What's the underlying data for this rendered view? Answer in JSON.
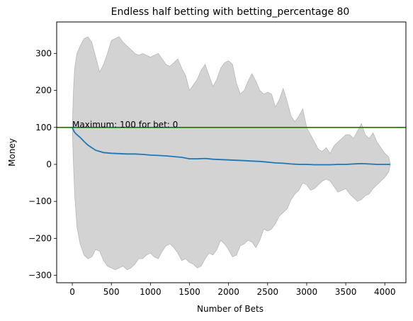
{
  "chart_data": {
    "type": "line",
    "title": "Endless half betting with betting_percentage 80",
    "xlabel": "Number of Bets",
    "ylabel": "Money",
    "xlim": [
      -200,
      4270
    ],
    "ylim": [
      -320,
      385
    ],
    "xticks": [
      0,
      500,
      1000,
      1500,
      2000,
      2500,
      3000,
      3500,
      4000
    ],
    "yticks": [
      -300,
      -200,
      -100,
      0,
      100,
      200,
      300
    ],
    "grid": false,
    "legend": "none",
    "reference_line": {
      "y": 100,
      "color": "#008000"
    },
    "annotation": {
      "text": "Maximum: 100 for bet: 0",
      "x": 0,
      "y": 100
    },
    "colors": {
      "mean": "#1f77b4",
      "band_fill": "#d3d3d3",
      "band_edge": "#b8b8b8",
      "reference": "#008000"
    },
    "series": [
      {
        "role": "mean",
        "x": [
          0,
          25,
          50,
          100,
          150,
          200,
          250,
          300,
          400,
          500,
          600,
          700,
          800,
          900,
          1000,
          1100,
          1200,
          1300,
          1400,
          1500,
          1600,
          1700,
          1800,
          1900,
          2000,
          2100,
          2200,
          2300,
          2400,
          2500,
          2600,
          2700,
          2800,
          2900,
          3000,
          3100,
          3200,
          3300,
          3400,
          3500,
          3600,
          3700,
          3800,
          3900,
          4000,
          4070
        ],
        "y": [
          100,
          88,
          82,
          73,
          62,
          52,
          45,
          38,
          32,
          30,
          29,
          28,
          28,
          27,
          25,
          24,
          23,
          21,
          19,
          15,
          15,
          16,
          14,
          13,
          12,
          11,
          10,
          9,
          8,
          6,
          4,
          3,
          1,
          0,
          0,
          -1,
          -1,
          -1,
          0,
          0,
          1,
          2,
          1,
          0,
          0,
          0
        ]
      },
      {
        "role": "band_upper",
        "x": [
          0,
          15,
          30,
          60,
          100,
          150,
          200,
          250,
          300,
          350,
          400,
          450,
          500,
          550,
          600,
          650,
          700,
          750,
          800,
          850,
          900,
          950,
          1000,
          1050,
          1100,
          1150,
          1200,
          1250,
          1300,
          1350,
          1400,
          1450,
          1500,
          1550,
          1600,
          1650,
          1700,
          1750,
          1800,
          1850,
          1900,
          1950,
          2000,
          2050,
          2100,
          2150,
          2200,
          2250,
          2300,
          2350,
          2400,
          2450,
          2500,
          2550,
          2600,
          2650,
          2700,
          2750,
          2800,
          2850,
          2900,
          2950,
          3000,
          3050,
          3100,
          3150,
          3200,
          3250,
          3300,
          3350,
          3400,
          3450,
          3500,
          3550,
          3600,
          3650,
          3700,
          3750,
          3800,
          3850,
          3900,
          3950,
          4000,
          4050,
          4070
        ],
        "y": [
          100,
          200,
          260,
          300,
          320,
          340,
          345,
          330,
          290,
          250,
          270,
          300,
          335,
          340,
          345,
          330,
          320,
          310,
          300,
          295,
          300,
          295,
          290,
          295,
          300,
          285,
          270,
          265,
          275,
          285,
          260,
          240,
          200,
          215,
          230,
          255,
          270,
          240,
          210,
          230,
          260,
          275,
          280,
          270,
          220,
          190,
          200,
          225,
          245,
          225,
          200,
          190,
          195,
          190,
          155,
          175,
          205,
          170,
          130,
          115,
          130,
          150,
          100,
          80,
          60,
          40,
          35,
          45,
          30,
          50,
          60,
          70,
          80,
          80,
          70,
          90,
          110,
          80,
          70,
          85,
          60,
          45,
          30,
          20,
          0
        ]
      },
      {
        "role": "band_lower",
        "x": [
          0,
          15,
          30,
          60,
          100,
          150,
          200,
          250,
          300,
          350,
          400,
          450,
          500,
          550,
          600,
          650,
          700,
          750,
          800,
          850,
          900,
          950,
          1000,
          1050,
          1100,
          1150,
          1200,
          1250,
          1300,
          1350,
          1400,
          1450,
          1500,
          1550,
          1600,
          1650,
          1700,
          1750,
          1800,
          1850,
          1900,
          1950,
          2000,
          2050,
          2100,
          2150,
          2200,
          2250,
          2300,
          2350,
          2400,
          2450,
          2500,
          2550,
          2600,
          2650,
          2700,
          2750,
          2800,
          2850,
          2900,
          2950,
          3000,
          3050,
          3100,
          3150,
          3200,
          3250,
          3300,
          3350,
          3400,
          3450,
          3500,
          3550,
          3600,
          3650,
          3700,
          3750,
          3800,
          3850,
          3900,
          3950,
          4000,
          4050,
          4070
        ],
        "y": [
          100,
          0,
          -80,
          -170,
          -215,
          -245,
          -255,
          -250,
          -230,
          -235,
          -260,
          -275,
          -280,
          -285,
          -280,
          -275,
          -285,
          -280,
          -270,
          -255,
          -255,
          -245,
          -240,
          -250,
          -255,
          -235,
          -220,
          -215,
          -225,
          -240,
          -260,
          -255,
          -265,
          -270,
          -280,
          -275,
          -255,
          -240,
          -245,
          -230,
          -205,
          -215,
          -230,
          -250,
          -245,
          -220,
          -215,
          -205,
          -210,
          -225,
          -205,
          -175,
          -180,
          -175,
          -160,
          -140,
          -130,
          -120,
          -95,
          -80,
          -70,
          -50,
          -55,
          -70,
          -65,
          -55,
          -45,
          -40,
          -45,
          -60,
          -75,
          -70,
          -65,
          -80,
          -90,
          -100,
          -95,
          -85,
          -80,
          -65,
          -55,
          -45,
          -35,
          -20,
          0
        ]
      }
    ]
  }
}
